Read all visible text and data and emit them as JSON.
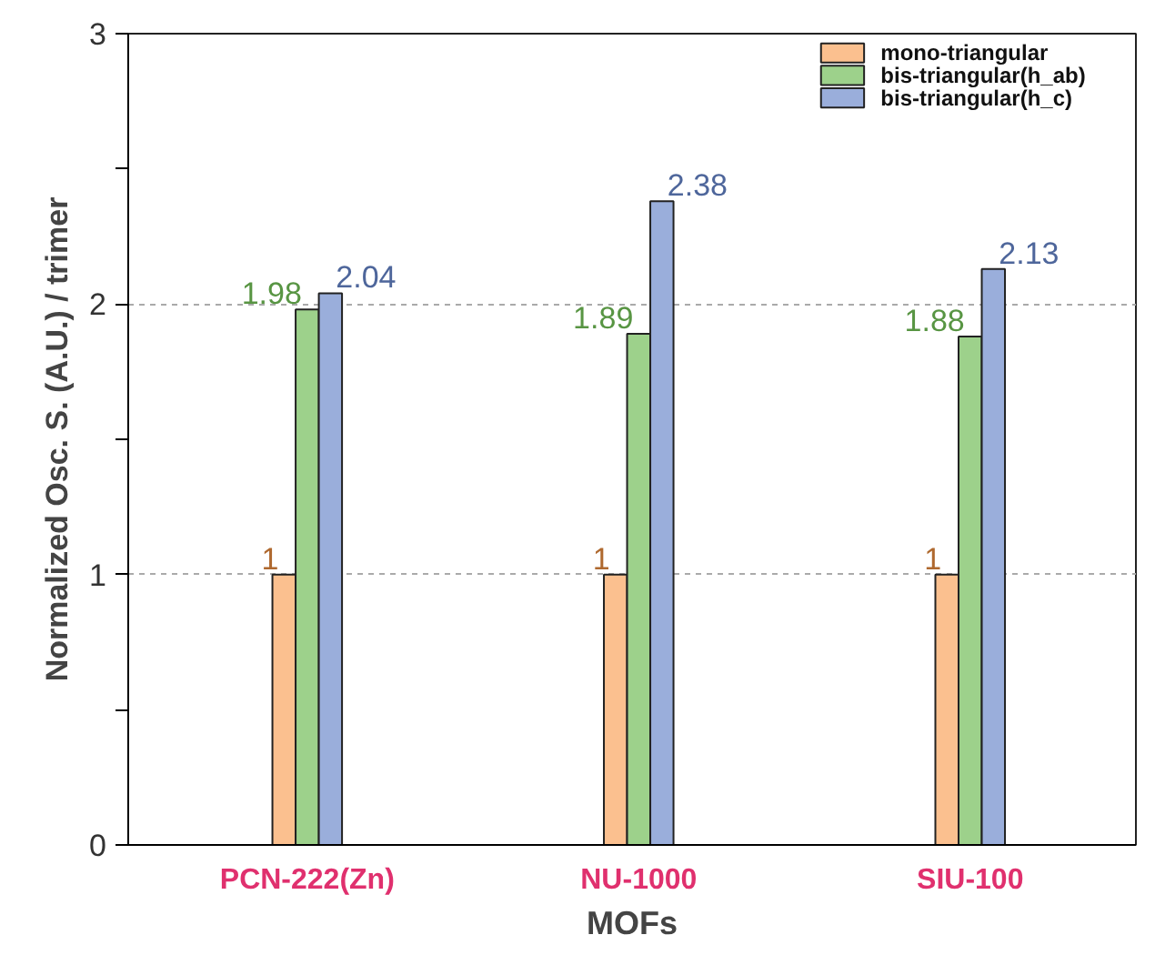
{
  "chart_data": {
    "type": "bar",
    "xlabel": "MOFs",
    "ylabel": "Normalized Osc. S. (A.U.) / trimer",
    "categories": [
      "PCN-222(Zn)",
      "NU-1000",
      "SIU-100"
    ],
    "series": [
      {
        "name": "mono-triangular",
        "color": "#fbc08f",
        "values": [
          1,
          1,
          1
        ]
      },
      {
        "name": "bis-triangular(h_ab)",
        "color": "#9dd18b",
        "values": [
          1.98,
          1.89,
          1.88
        ]
      },
      {
        "name": "bis-triangular(h_c)",
        "color": "#9aaedb",
        "values": [
          2.04,
          2.38,
          2.13
        ]
      }
    ],
    "ylim": [
      0,
      3
    ],
    "yticks": [
      0,
      {
        "value": 0.5,
        "label": null
      },
      1,
      {
        "value": 1.5,
        "label": null
      },
      2,
      {
        "value": 2.5,
        "label": null
      },
      3
    ],
    "grid": "y",
    "legend": "top right",
    "data_labels": true
  }
}
